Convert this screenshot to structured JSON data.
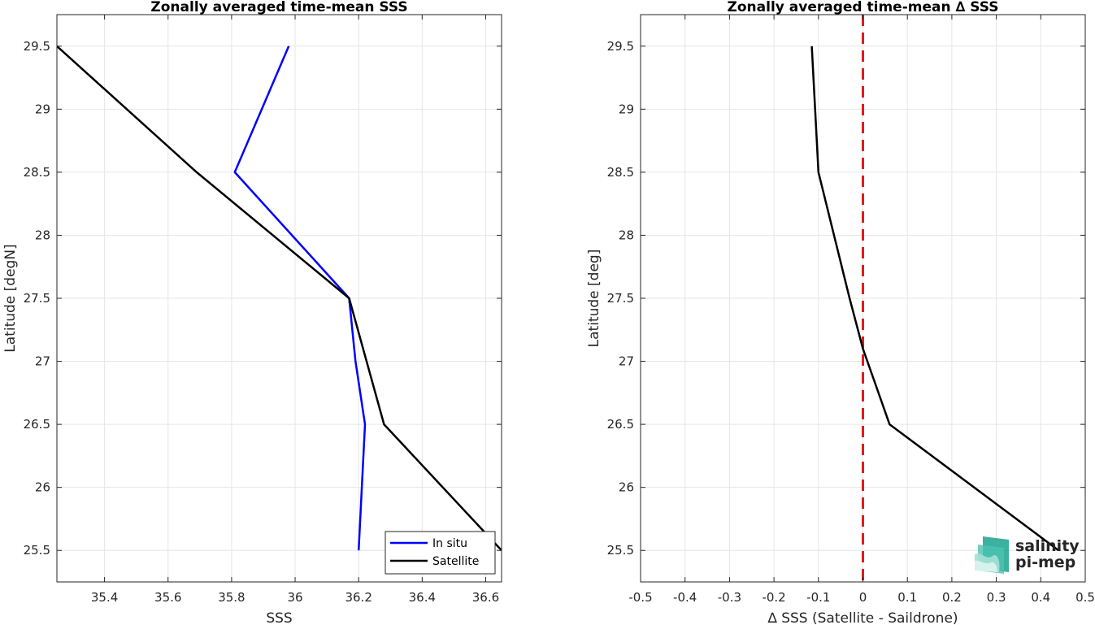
{
  "colors": {
    "in_situ": "#0000ff",
    "satellite": "#000000",
    "zero_line": "#e41a1c",
    "grid": "#e6e6e6",
    "axis": "#262626",
    "logo_teal": "#1aa38f",
    "logo_dark": "#1e5b56"
  },
  "logo": {
    "line1": "salinity",
    "line2": "pi-mep"
  },
  "chart_data": [
    {
      "type": "line",
      "title": "Zonally averaged time-mean SSS",
      "xlabel": "SSS",
      "ylabel": "Latitude [degN]",
      "xlim": [
        35.25,
        36.65
      ],
      "ylim": [
        25.25,
        29.75
      ],
      "xticks": [
        "35.4",
        "35.6",
        "35.8",
        "36",
        "36.2",
        "36.4",
        "36.6"
      ],
      "yticks": [
        "25.5",
        "26",
        "26.5",
        "27",
        "27.5",
        "28",
        "28.5",
        "29",
        "29.5"
      ],
      "grid": true,
      "legend_position": "bottom-right",
      "series": [
        {
          "name": "In situ",
          "color": "#0000ff",
          "x": [
            36.2,
            36.22,
            36.19,
            36.17,
            35.81,
            35.98
          ],
          "y": [
            25.5,
            26.5,
            27.0,
            27.5,
            28.5,
            29.5
          ]
        },
        {
          "name": "Satellite",
          "color": "#000000",
          "x": [
            36.65,
            36.28,
            36.17,
            35.69,
            35.25
          ],
          "y": [
            25.5,
            26.5,
            27.5,
            28.5,
            29.5
          ]
        }
      ]
    },
    {
      "type": "line",
      "title": "Zonally averaged time-mean ∆ SSS",
      "xlabel": "∆ SSS (Satellite - Saildrone)",
      "ylabel": "Latitude [deg]",
      "xlim": [
        -0.5,
        0.5
      ],
      "ylim": [
        25.25,
        29.75
      ],
      "xticks": [
        "-0.5",
        "-0.4",
        "-0.3",
        "-0.2",
        "-0.1",
        "0",
        "0.1",
        "0.2",
        "0.3",
        "0.4",
        "0.5"
      ],
      "yticks": [
        "25.5",
        "26",
        "26.5",
        "27",
        "27.5",
        "28",
        "28.5",
        "29",
        "29.5"
      ],
      "grid": true,
      "reference_line": {
        "x": 0,
        "style": "dashed",
        "color": "#e41a1c"
      },
      "series": [
        {
          "color": "#000000",
          "x": [
            0.44,
            0.06,
            0.0,
            -0.03,
            -0.1,
            -0.115
          ],
          "y": [
            25.5,
            26.5,
            27.1,
            27.5,
            28.5,
            29.5
          ]
        }
      ]
    }
  ]
}
